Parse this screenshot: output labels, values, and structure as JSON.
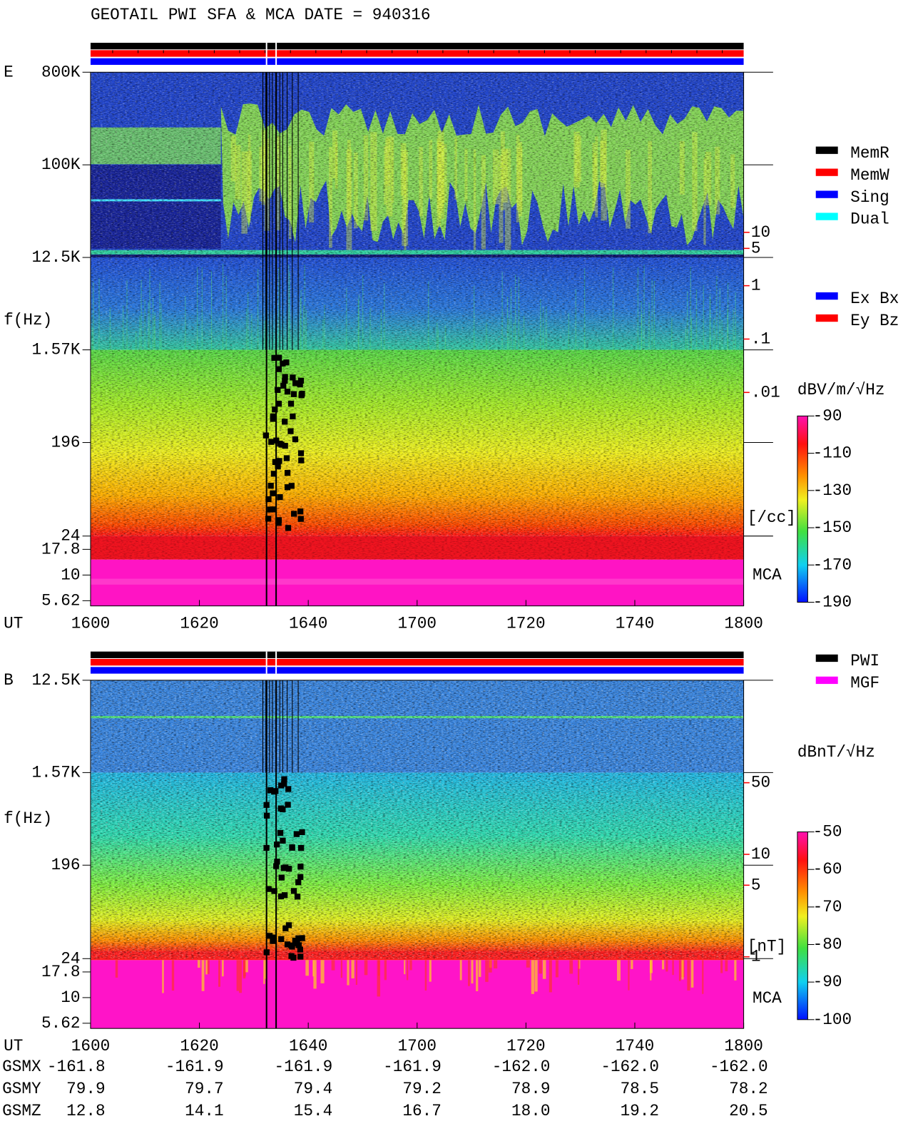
{
  "title": "GEOTAIL  PWI SFA & MCA   DATE = 940316",
  "chart_data": [
    {
      "type": "spectrogram",
      "panel_label": "E",
      "ylabel": "f(Hz)",
      "xlabel": "UT",
      "yscale": "log",
      "xticks": [
        "1600",
        "1620",
        "1640",
        "1700",
        "1720",
        "1740",
        "1800"
      ],
      "ylim": [
        5,
        800000
      ],
      "yticks": [
        {
          "value": 800000,
          "label": "800K"
        },
        {
          "value": 100000,
          "label": "100K"
        },
        {
          "value": 12500,
          "label": "12.5K"
        },
        {
          "value": 1570,
          "label": "1.57K"
        },
        196,
        24,
        17.8,
        10,
        5.62
      ],
      "y2lim": [
        1e-06,
        10000
      ],
      "y2ticks": [
        10,
        5,
        1,
        {
          "value": 0.1,
          "label": ".1"
        },
        {
          "value": 0.01,
          "label": ".01"
        }
      ],
      "y2label": "[/cc]",
      "y2color": "#ff0000",
      "mca_label": "MCA",
      "colorbar": {
        "label": "dBV/m/√Hz",
        "clim": [
          -190,
          -90
        ],
        "ticks": [
          -90,
          -110,
          -130,
          -150,
          -170,
          -190
        ]
      }
    },
    {
      "type": "spectrogram",
      "panel_label": "B",
      "ylabel": "f(Hz)",
      "xlabel": "UT",
      "yscale": "log",
      "xticks": [
        "1600",
        "1620",
        "1640",
        "1700",
        "1720",
        "1740",
        "1800"
      ],
      "ylim": [
        5,
        12500
      ],
      "yticks": [
        {
          "value": 12500,
          "label": "12.5K"
        },
        {
          "value": 1570,
          "label": "1.57K"
        },
        196,
        24,
        17.8,
        10,
        5.62
      ],
      "y2lim": [
        0.2,
        500
      ],
      "y2ticks": [
        50,
        10,
        5,
        1
      ],
      "y2label": "[nT]",
      "y2color": "#ff0000",
      "mca_label": "MCA",
      "colorbar": {
        "label": "dBnT/√Hz",
        "clim": [
          -100,
          -50
        ],
        "ticks": [
          -50,
          -60,
          -70,
          -80,
          -90,
          -100
        ]
      }
    }
  ],
  "legends": {
    "memory": [
      {
        "name": "MemR",
        "color": "#000000"
      },
      {
        "name": "MemW",
        "color": "#ff0000"
      },
      {
        "name": "Sing",
        "color": "#0000ff"
      },
      {
        "name": "Dual",
        "color": "#00ffff"
      }
    ],
    "component": [
      {
        "name": "Ex Bx",
        "color": "#0000ff"
      },
      {
        "name": "Ey Bz",
        "color": "#ff0000"
      }
    ],
    "sensor": [
      {
        "name": "PWI",
        "color": "#000000"
      },
      {
        "name": "MGF",
        "color": "#ff00ff"
      }
    ]
  },
  "orbit": [
    {
      "name": "GSMX",
      "values": [
        "-161.8",
        "-161.9",
        "-161.9",
        "-161.9",
        "-162.0",
        "-162.0",
        "-162.0"
      ]
    },
    {
      "name": "GSMY",
      "values": [
        "79.9",
        "79.7",
        "79.4",
        "79.2",
        "78.9",
        "78.5",
        "78.2"
      ]
    },
    {
      "name": "GSMZ",
      "values": [
        "12.8",
        "14.1",
        "15.4",
        "16.7",
        "18.0",
        "19.2",
        "20.5"
      ]
    }
  ]
}
